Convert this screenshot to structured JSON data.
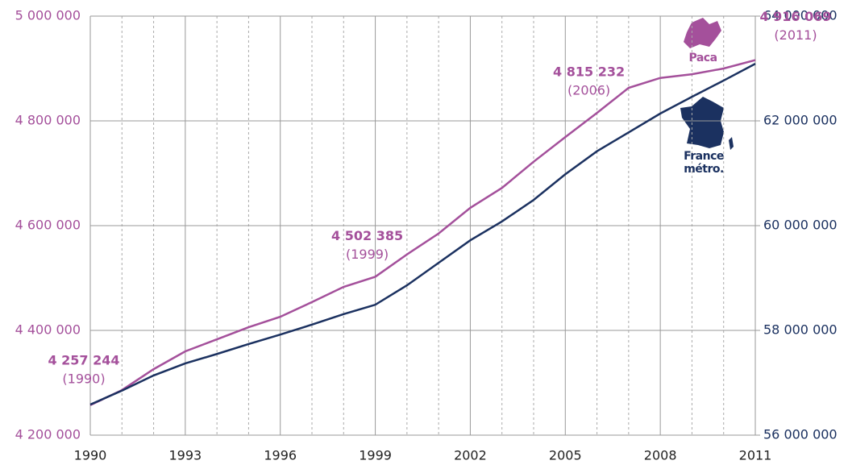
{
  "chart_data": {
    "type": "line",
    "x": [
      1990,
      1991,
      1992,
      1993,
      1994,
      1995,
      1996,
      1997,
      1998,
      1999,
      2000,
      2001,
      2002,
      2003,
      2004,
      2005,
      2006,
      2007,
      2008,
      2009,
      2010,
      2011
    ],
    "series": [
      {
        "name": "Paca",
        "color": "#a4509b",
        "axis": "y",
        "values": [
          4257244,
          4286000,
          4326000,
          4360000,
          4383000,
          4406000,
          4426000,
          4454000,
          4483000,
          4502385,
          4545000,
          4585000,
          4634000,
          4672000,
          4722000,
          4769000,
          4815232,
          4863000,
          4882000,
          4889000,
          4900000,
          4916069
        ]
      },
      {
        "name": "France métro.",
        "color": "#1b3160",
        "axis": "y2",
        "values": [
          56585000,
          56850000,
          57140000,
          57370000,
          57550000,
          57740000,
          57920000,
          58110000,
          58310000,
          58490000,
          58860000,
          59290000,
          59720000,
          60080000,
          60490000,
          60980000,
          61420000,
          61780000,
          62140000,
          62460000,
          62770000,
          63090000
        ]
      }
    ],
    "annotations": [
      {
        "x": 1990,
        "label": "4 257 244",
        "note": "(1990)"
      },
      {
        "x": 1999,
        "label": "4 502 385",
        "note": "(1999)"
      },
      {
        "x": 2006,
        "label": "4 815 232",
        "note": "(2006)"
      },
      {
        "x": 2011,
        "label": "4 916 069",
        "note": "(2011)"
      }
    ],
    "xlim": [
      1990,
      2011
    ],
    "xticks": [
      1990,
      1993,
      1996,
      1999,
      2002,
      2005,
      2008,
      2011
    ],
    "ylim": [
      4200000,
      5000000
    ],
    "yticks": [
      {
        "value": 4200000,
        "label": "4 200 000"
      },
      {
        "value": 4400000,
        "label": "4 400 000"
      },
      {
        "value": 4600000,
        "label": "4 600 000"
      },
      {
        "value": 4800000,
        "label": "4 800 000"
      },
      {
        "value": 5000000,
        "label": "5 000 000"
      }
    ],
    "y2lim": [
      56000000,
      64000000
    ],
    "y2ticks": [
      {
        "value": 56000000,
        "label": "56 000 000"
      },
      {
        "value": 58000000,
        "label": "58 000 000"
      },
      {
        "value": 60000000,
        "label": "60 000 000"
      },
      {
        "value": 62000000,
        "label": "62 000 000"
      },
      {
        "value": 64000000,
        "label": "64 000 000"
      }
    ],
    "grid": true
  }
}
